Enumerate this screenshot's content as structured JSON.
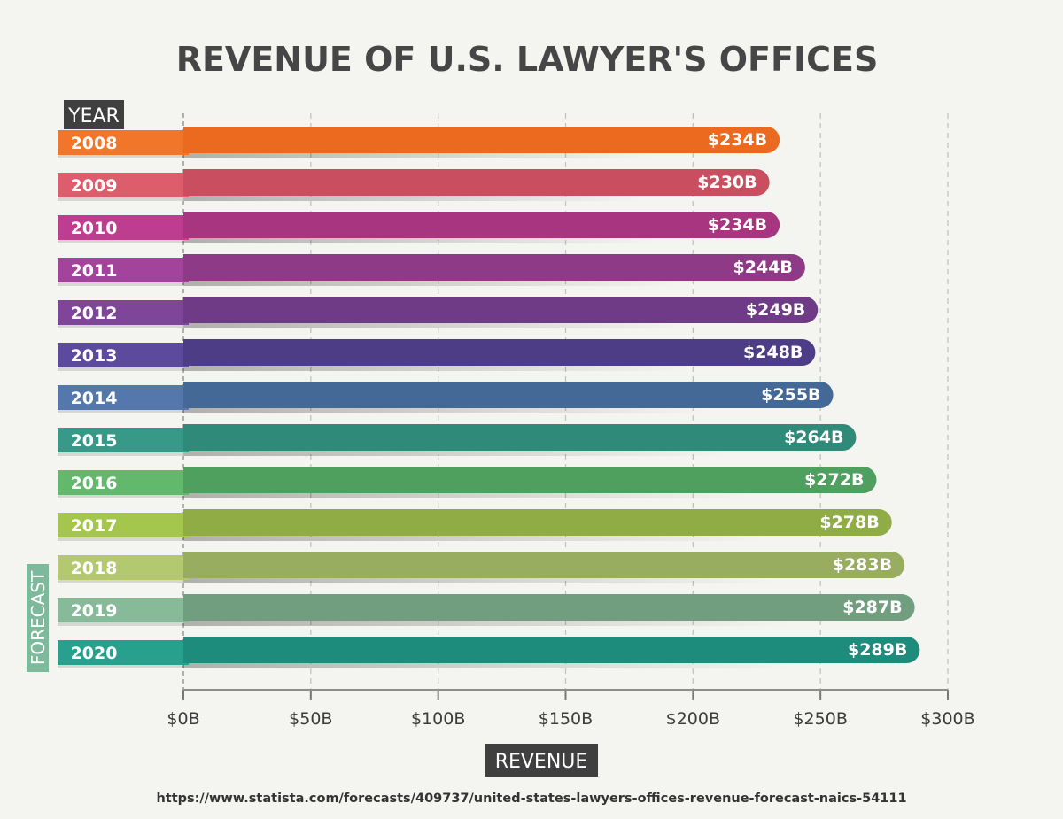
{
  "chart_data": {
    "type": "bar",
    "orientation": "horizontal",
    "title": "REVENUE OF U.S. LAWYER'S OFFICES",
    "ylabel": "YEAR",
    "xlabel": "REVENUE",
    "forecast_label": "FORECAST",
    "forecast_from": "2018",
    "categories": [
      "2008",
      "2009",
      "2010",
      "2011",
      "2012",
      "2013",
      "2014",
      "2015",
      "2016",
      "2017",
      "2018",
      "2019",
      "2020"
    ],
    "values": [
      234,
      230,
      234,
      244,
      249,
      248,
      255,
      264,
      272,
      278,
      283,
      287,
      289
    ],
    "value_labels": [
      "$234B",
      "$230B",
      "$234B",
      "$244B",
      "$249B",
      "$248B",
      "$255B",
      "$264B",
      "$272B",
      "$278B",
      "$283B",
      "$287B",
      "$289B"
    ],
    "xlim": [
      0,
      300
    ],
    "xticks": [
      0,
      50,
      100,
      150,
      200,
      250,
      300
    ],
    "xtick_labels": [
      "$0B",
      "$50B",
      "$100B",
      "$150B",
      "$200B",
      "$250B",
      "$300B"
    ],
    "grid": "vertical-dashed",
    "colors": [
      "#ec6a20",
      "#c94e5f",
      "#a8357f",
      "#8e3a86",
      "#6f3b87",
      "#4c3d86",
      "#456996",
      "#2f8a7a",
      "#4f9f5e",
      "#8fad44",
      "#98ad5f",
      "#729e80",
      "#1d8c7c"
    ],
    "tab_colors": [
      "#f1762a",
      "#dd5d6c",
      "#be3d91",
      "#a3439b",
      "#7e4599",
      "#5b4a9e",
      "#5478ac",
      "#379a88",
      "#62b86b",
      "#a4c64d",
      "#b3c86f",
      "#86ba99",
      "#27a08d"
    ]
  },
  "source": "https://www.statista.com/forecasts/409737/united-states-lawyers-offices-revenue-forecast-naics-54111"
}
